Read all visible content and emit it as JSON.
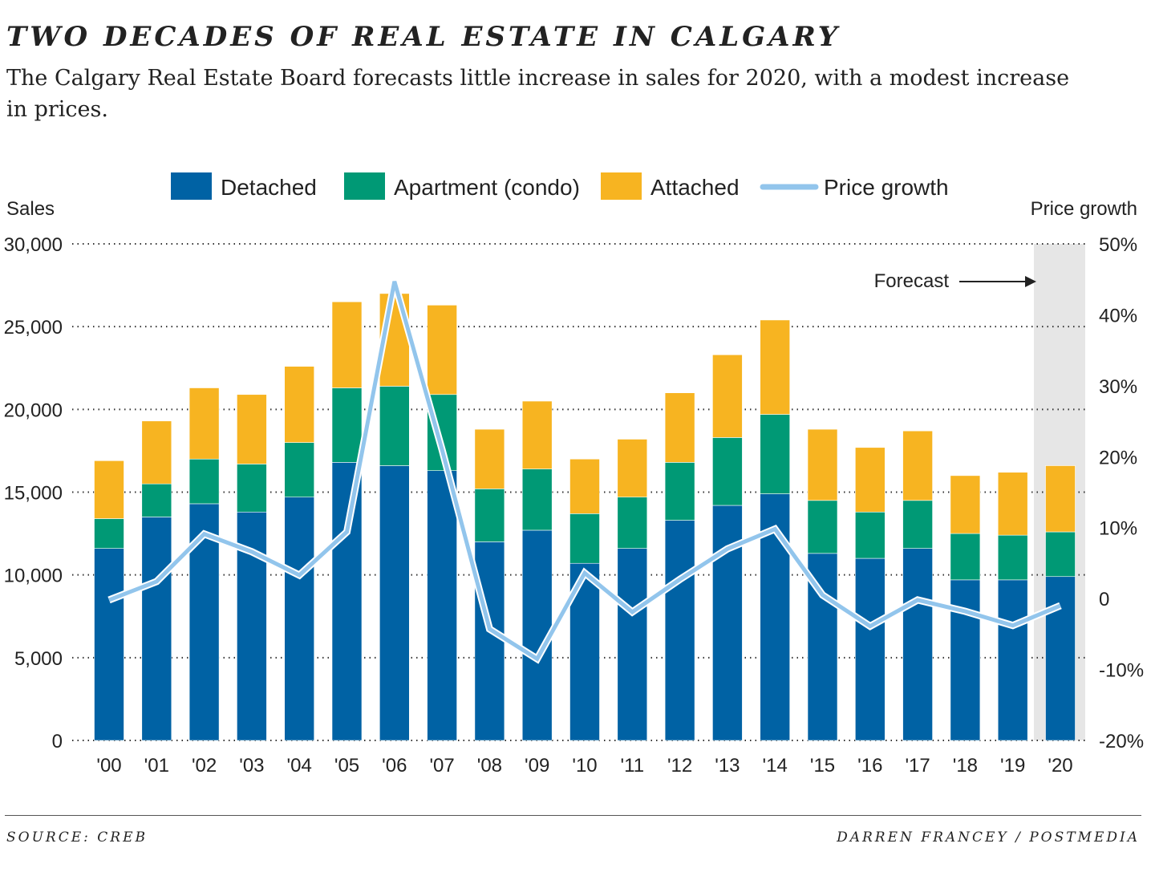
{
  "title": "TWO DECADES OF REAL ESTATE IN CALGARY",
  "subtitle": "The Calgary Real Estate Board forecasts little increase in sales for 2020, with a modest increase in prices.",
  "source": "SOURCE: CREB",
  "credit": "DARREN FRANCEY / POSTMEDIA",
  "chart_data": {
    "type": "bar",
    "stacked": true,
    "categories": [
      "'00",
      "'01",
      "'02",
      "'03",
      "'04",
      "'05",
      "'06",
      "'07",
      "'08",
      "'09",
      "'10",
      "'11",
      "'12",
      "'13",
      "'14",
      "'15",
      "'16",
      "'17",
      "'18",
      "'19",
      "'20"
    ],
    "ylabel": "Sales",
    "y2label": "Price growth",
    "ylim": [
      0,
      30000
    ],
    "y2lim": [
      -20,
      50
    ],
    "yticks": [
      "0",
      "5,000",
      "10,000",
      "15,000",
      "20,000",
      "25,000",
      "30,000"
    ],
    "y2ticks": [
      "-20%",
      "-10%",
      "0",
      "10%",
      "20%",
      "30%",
      "40%",
      "50%"
    ],
    "grid": true,
    "legend_placement": "top",
    "annotation": "Forecast",
    "forecast_category": "'20",
    "series": [
      {
        "name": "Detached",
        "color": "#0062a4",
        "values": [
          11600,
          13500,
          14300,
          13800,
          14700,
          16800,
          16600,
          16300,
          12000,
          12700,
          10700,
          11600,
          13300,
          14200,
          14900,
          11300,
          11000,
          11600,
          9700,
          9700,
          9900
        ]
      },
      {
        "name": "Apartment (condo)",
        "color": "#009975",
        "values": [
          1800,
          2000,
          2700,
          2900,
          3300,
          4500,
          4800,
          4600,
          3200,
          3700,
          3000,
          3100,
          3500,
          4100,
          4800,
          3200,
          2800,
          2900,
          2800,
          2700,
          2700
        ]
      },
      {
        "name": "Attached",
        "color": "#f7b421",
        "values": [
          3500,
          3800,
          4300,
          4200,
          4600,
          5200,
          5600,
          5400,
          3600,
          4100,
          3300,
          3500,
          4200,
          5000,
          5700,
          4300,
          3900,
          4200,
          3500,
          3800,
          4000
        ]
      },
      {
        "name": "Price growth",
        "type": "line",
        "axis": "right",
        "unit": "%",
        "color": "#92c5ec",
        "values": [
          -0.2,
          2.4,
          9.1,
          6.6,
          3.3,
          9.4,
          44.7,
          21,
          -4.3,
          -8.5,
          3.6,
          -1.9,
          2.7,
          7.0,
          9.8,
          0.5,
          -3.9,
          -0.2,
          -1.8,
          -3.8,
          -1.0
        ]
      }
    ]
  }
}
